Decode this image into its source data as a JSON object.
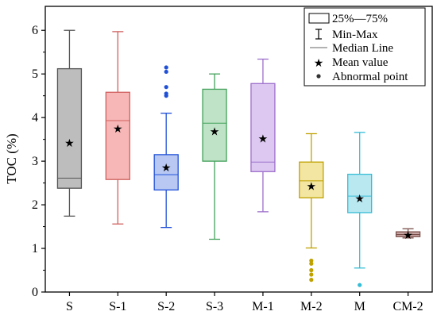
{
  "chart_data": {
    "type": "box",
    "ylabel": "TOC (%)",
    "xlabel": "",
    "ylim": [
      0,
      6.55
    ],
    "yticks": [
      0,
      1,
      2,
      3,
      4,
      5,
      6
    ],
    "ytick_labels": [
      "0",
      "1",
      "2",
      "3",
      "4",
      "5",
      "6"
    ],
    "grid": false,
    "legend_position": "top-right",
    "legend": {
      "box_label": "25%—75%",
      "whisker_label": "Min-Max",
      "median_label": "Median  Line",
      "mean_label": "Mean value",
      "outlier_label": "Abnormal point"
    },
    "categories": [
      "S",
      "S-1",
      "S-2",
      "S-3",
      "M-1",
      "M-2",
      "M",
      "CM-2"
    ],
    "boxes": [
      {
        "category": "S",
        "min": 1.74,
        "q1": 2.38,
        "median": 2.61,
        "q3": 5.12,
        "max": 6.0,
        "mean": 3.42,
        "outliers": [],
        "stroke": "#555555",
        "fill": "#bdbdbd"
      },
      {
        "category": "S-1",
        "min": 1.56,
        "q1": 2.58,
        "median": 3.93,
        "q3": 4.58,
        "max": 5.97,
        "mean": 3.75,
        "outliers": [],
        "stroke": "#d0605e",
        "fill": "#f6b7b6"
      },
      {
        "category": "S-2",
        "min": 1.48,
        "q1": 2.34,
        "median": 2.69,
        "q3": 3.15,
        "max": 4.1,
        "mean": 2.86,
        "outliers": [
          4.5,
          4.55,
          4.7,
          5.05,
          5.15
        ],
        "stroke": "#2050d8",
        "fill": "#b8c8f2"
      },
      {
        "category": "S-3",
        "min": 1.21,
        "q1": 3.0,
        "median": 3.87,
        "q3": 4.65,
        "max": 5.0,
        "mean": 3.68,
        "outliers": [],
        "stroke": "#43a15b",
        "fill": "#bfe3c6"
      },
      {
        "category": "M-1",
        "min": 1.84,
        "q1": 2.76,
        "median": 2.98,
        "q3": 4.78,
        "max": 5.34,
        "mean": 3.52,
        "outliers": [],
        "stroke": "#9d6fcb",
        "fill": "#dcc8f0"
      },
      {
        "category": "M-2",
        "min": 1.01,
        "q1": 2.16,
        "median": 2.55,
        "q3": 2.98,
        "max": 3.63,
        "mean": 2.43,
        "outliers": [
          0.28,
          0.4,
          0.5,
          0.65,
          0.72
        ],
        "stroke": "#bfa100",
        "fill": "#f2e6a2"
      },
      {
        "category": "M",
        "min": 0.55,
        "q1": 1.82,
        "median": 2.2,
        "q3": 2.7,
        "max": 3.66,
        "mean": 2.15,
        "outliers": [
          0.16
        ],
        "stroke": "#36bdd6",
        "fill": "#b9e8f1"
      },
      {
        "category": "CM-2",
        "min": 1.24,
        "q1": 1.27,
        "median": 1.32,
        "q3": 1.38,
        "max": 1.45,
        "mean": 1.31,
        "outliers": [],
        "stroke": "#7a4e4a",
        "fill": "#c7a5a2"
      }
    ]
  }
}
